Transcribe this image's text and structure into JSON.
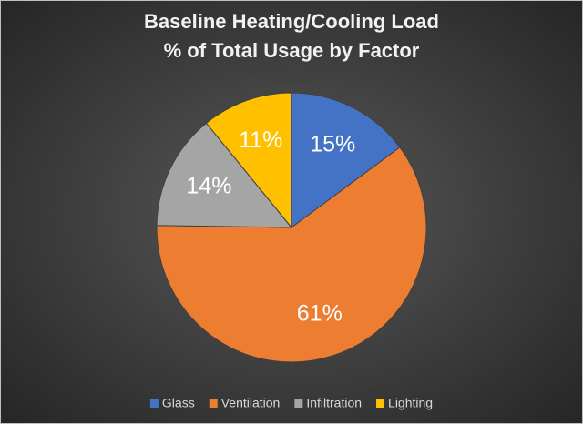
{
  "chart_data": {
    "type": "pie",
    "title": [
      "Baseline Heating/Cooling Load",
      "% of Total Usage by Factor"
    ],
    "categories": [
      "Glass",
      "Ventilation",
      "Infiltration",
      "Lighting"
    ],
    "values": [
      15,
      61,
      14,
      11
    ],
    "value_labels": [
      "15%",
      "61%",
      "14%",
      "11%"
    ],
    "colors": [
      "#4472c4",
      "#ed7d31",
      "#a5a5a5",
      "#ffc000"
    ],
    "legend": "bottom"
  }
}
